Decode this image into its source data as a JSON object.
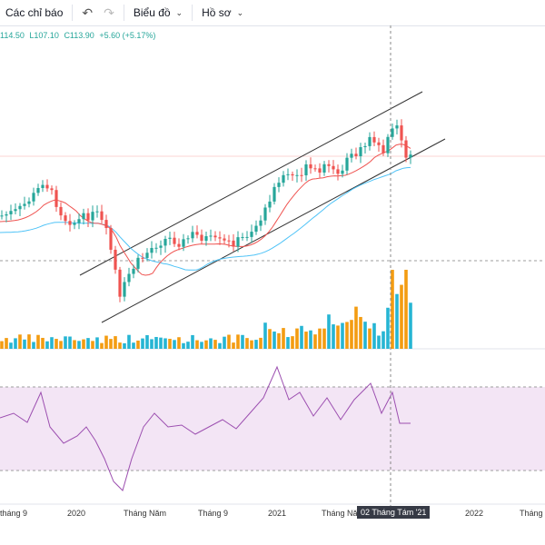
{
  "toolbar": {
    "indicators_label": "Các chỉ báo",
    "undo_icon": "undo-icon",
    "redo_icon": "redo-icon",
    "chart_label": "Biểu đồ",
    "profile_label": "Hồ sơ"
  },
  "ohlc": {
    "high": "114.50",
    "low": "L107.10",
    "close": "C113.90",
    "change": "+5.60 (+5.17%)"
  },
  "time_axis": {
    "labels": [
      "tháng 9",
      "2020",
      "Tháng Năm",
      "Tháng 9",
      "2021",
      "Tháng Năm",
      "2022",
      "Tháng"
    ]
  },
  "crosshair": {
    "date_label": "02 Tháng Tám '21"
  },
  "colors": {
    "up": "#26a69a",
    "down": "#ef5350",
    "ma_fast": "#ef5350",
    "ma_slow": "#4fc3f7",
    "volume_up": "#26b5d3",
    "volume_down": "#f39c12",
    "rsi_line": "#9c4fb0",
    "rsi_band": "#f3e5f5",
    "channel": "#333333"
  }
}
